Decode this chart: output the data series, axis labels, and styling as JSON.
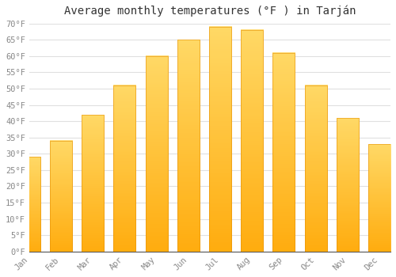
{
  "title": "Average monthly temperatures (°F ) in Tarján",
  "months": [
    "Jan",
    "Feb",
    "Mar",
    "Apr",
    "May",
    "Jun",
    "Jul",
    "Aug",
    "Sep",
    "Oct",
    "Nov",
    "Dec"
  ],
  "values": [
    29,
    34,
    42,
    51,
    60,
    65,
    69,
    68,
    61,
    51,
    41,
    33
  ],
  "bar_color_top": "#FFD966",
  "bar_color_bottom": "#FFA500",
  "bar_edge_color": "#E8940A",
  "background_color": "#FFFFFF",
  "grid_color": "#E0E0E0",
  "ylim": [
    0,
    70
  ],
  "yticks": [
    0,
    5,
    10,
    15,
    20,
    25,
    30,
    35,
    40,
    45,
    50,
    55,
    60,
    65,
    70
  ],
  "ytick_labels": [
    "0°F",
    "5°F",
    "10°F",
    "15°F",
    "20°F",
    "25°F",
    "30°F",
    "35°F",
    "40°F",
    "45°F",
    "50°F",
    "55°F",
    "60°F",
    "65°F",
    "70°F"
  ],
  "title_fontsize": 10,
  "tick_fontsize": 7.5,
  "tick_color": "#888888"
}
